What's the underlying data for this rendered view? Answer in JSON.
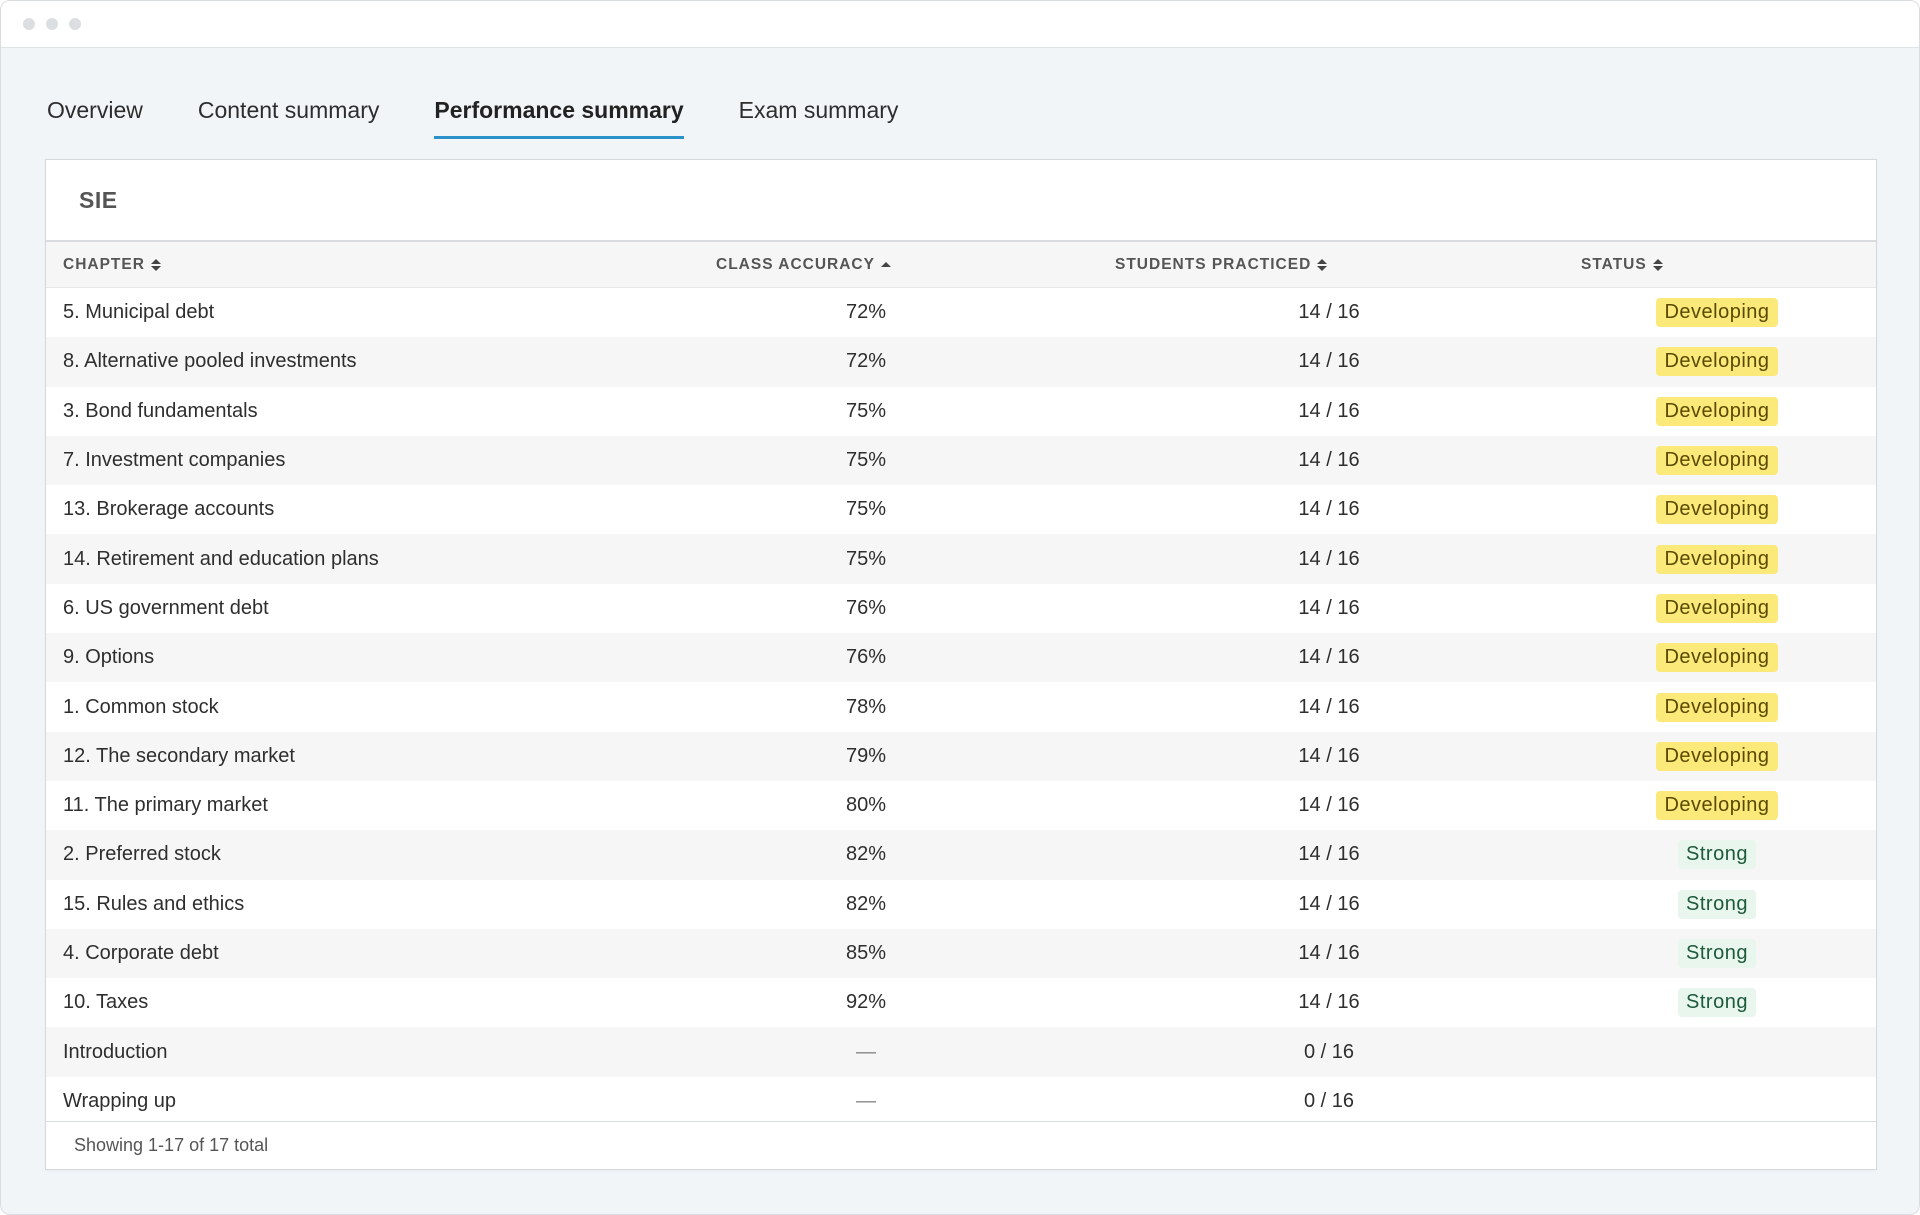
{
  "tabs": [
    {
      "label": "Overview",
      "active": false
    },
    {
      "label": "Content summary",
      "active": false
    },
    {
      "label": "Performance summary",
      "active": true
    },
    {
      "label": "Exam summary",
      "active": false
    }
  ],
  "panel": {
    "title": "SIE",
    "columns": {
      "chapter": "CHAPTER",
      "class_accuracy": "CLASS ACCURACY",
      "students_practiced": "STUDENTS PRACTICED",
      "status": "STATUS"
    },
    "rows": [
      {
        "chapter": "5. Municipal debt",
        "accuracy": "72%",
        "practiced": "14 / 16",
        "status": "Developing"
      },
      {
        "chapter": "8. Alternative pooled investments",
        "accuracy": "72%",
        "practiced": "14 / 16",
        "status": "Developing"
      },
      {
        "chapter": "3. Bond fundamentals",
        "accuracy": "75%",
        "practiced": "14 / 16",
        "status": "Developing"
      },
      {
        "chapter": "7. Investment companies",
        "accuracy": "75%",
        "practiced": "14 / 16",
        "status": "Developing"
      },
      {
        "chapter": "13. Brokerage accounts",
        "accuracy": "75%",
        "practiced": "14 / 16",
        "status": "Developing"
      },
      {
        "chapter": "14. Retirement and education plans",
        "accuracy": "75%",
        "practiced": "14 / 16",
        "status": "Developing"
      },
      {
        "chapter": "6. US government debt",
        "accuracy": "76%",
        "practiced": "14 / 16",
        "status": "Developing"
      },
      {
        "chapter": "9. Options",
        "accuracy": "76%",
        "practiced": "14 / 16",
        "status": "Developing"
      },
      {
        "chapter": "1. Common stock",
        "accuracy": "78%",
        "practiced": "14 / 16",
        "status": "Developing"
      },
      {
        "chapter": "12. The secondary market",
        "accuracy": "79%",
        "practiced": "14 / 16",
        "status": "Developing"
      },
      {
        "chapter": "11. The primary market",
        "accuracy": "80%",
        "practiced": "14 / 16",
        "status": "Developing"
      },
      {
        "chapter": "2. Preferred stock",
        "accuracy": "82%",
        "practiced": "14 / 16",
        "status": "Strong"
      },
      {
        "chapter": "15. Rules and ethics",
        "accuracy": "82%",
        "practiced": "14 / 16",
        "status": "Strong"
      },
      {
        "chapter": "4. Corporate debt",
        "accuracy": "85%",
        "practiced": "14 / 16",
        "status": "Strong"
      },
      {
        "chapter": "10. Taxes",
        "accuracy": "92%",
        "practiced": "14 / 16",
        "status": "Strong"
      },
      {
        "chapter": "Introduction",
        "accuracy": "—",
        "practiced": "0 / 16",
        "status": ""
      },
      {
        "chapter": "Wrapping up",
        "accuracy": "—",
        "practiced": "0 / 16",
        "status": ""
      }
    ],
    "footer": "Showing 1-17 of 17 total"
  },
  "colors": {
    "active_tab_underline": "#2a92c8",
    "developing_bg": "#fbe97a",
    "strong_bg": "#e8f6ee"
  }
}
